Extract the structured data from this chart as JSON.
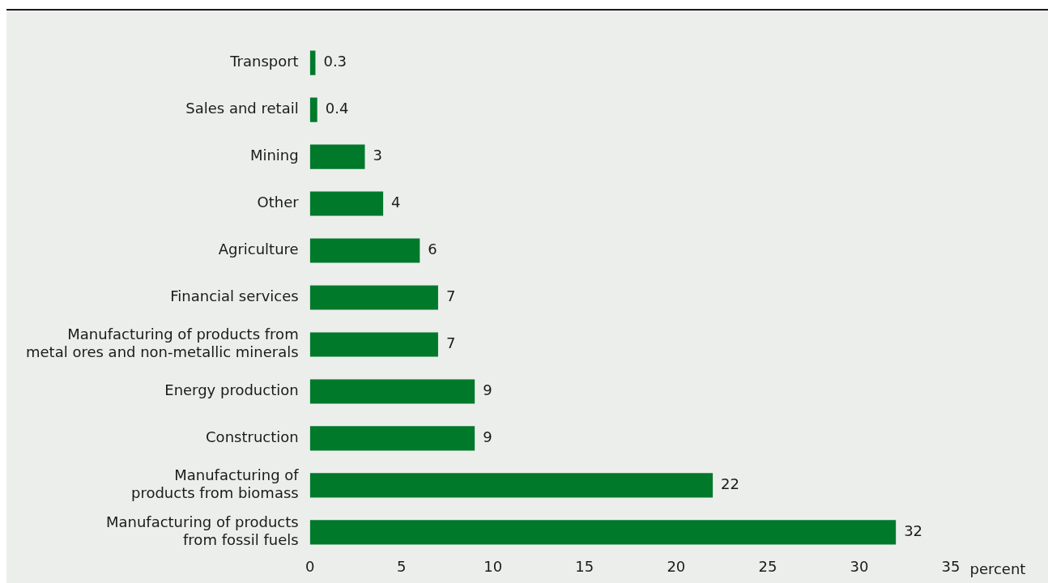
{
  "chart_data": {
    "type": "bar",
    "orientation": "horizontal",
    "xlabel": "percent",
    "categories": [
      "Transport",
      "Sales and retail",
      "Mining",
      "Other",
      "Agriculture",
      "Financial services",
      "Manufacturing of products from metal ores and non-metallic minerals",
      "Energy production",
      "Construction",
      "Manufacturing of products from biomass",
      "Manufacturing of products from fossil fuels"
    ],
    "values": [
      0.3,
      0.4,
      3,
      4,
      6,
      7,
      7,
      9,
      9,
      22,
      32
    ],
    "color": "#00792b",
    "xlim": [
      0,
      35
    ],
    "xticks": [
      0,
      5,
      10,
      15,
      20,
      25,
      30,
      35
    ],
    "data_labels": true,
    "grid": false,
    "legend": false
  }
}
